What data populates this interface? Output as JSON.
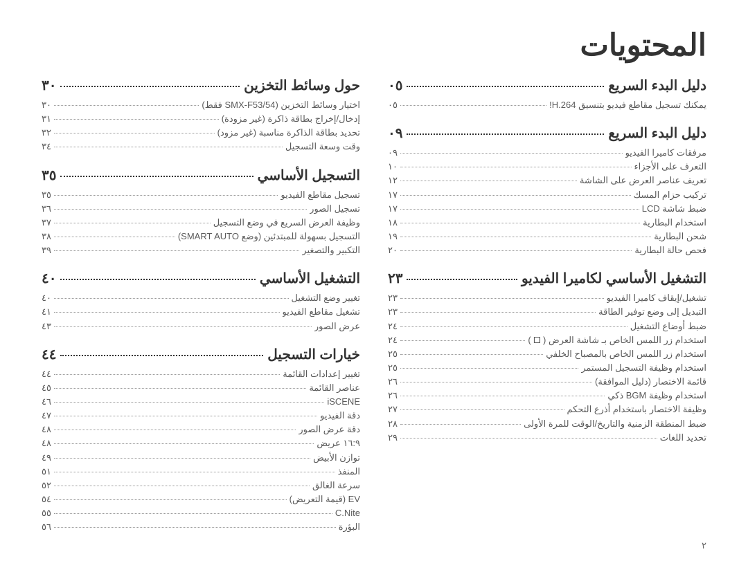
{
  "page_title": "المحتويات",
  "footer_page": "٢",
  "right_column": [
    {
      "heading": "دليل البدء السريع",
      "page": "٠٥",
      "entries": [
        {
          "text": "يمكنك تسجيل مقاطع فيديو بتنسيق H.264!",
          "page": "٠٥"
        }
      ]
    },
    {
      "heading": "دليل البدء السريع",
      "page": "٠٩",
      "entries": [
        {
          "text": "مرفقات كاميرا الفيديو",
          "page": "٠٩"
        },
        {
          "text": "التعرف على الأجزاء",
          "page": "١٠"
        },
        {
          "text": "تعريف عناصر العرض على الشاشة",
          "page": "١٢"
        },
        {
          "text": "تركيب حزام المسك",
          "page": "١٧"
        },
        {
          "text": "ضبط شاشة LCD",
          "page": "١٧"
        },
        {
          "text": "استخدام البطارية",
          "page": "١٨"
        },
        {
          "text": "شحن البطارية",
          "page": "١٩"
        },
        {
          "text": "فحص حالة البطارية",
          "page": "٢٠"
        }
      ]
    },
    {
      "heading": "التشغيل الأساسي لكاميرا الفيديو",
      "page": "٢٣",
      "entries": [
        {
          "text": "تشغيل/إيقاف كاميرا الفيديو",
          "page": "٢٣"
        },
        {
          "text": "التبديل إلى وضع توفير الطاقة",
          "page": "٢٣"
        },
        {
          "text": "ضبط أوضاع التشغيل",
          "page": "٢٤"
        },
        {
          "text": "استخدام زر اللمس الخاص بـ شاشة العرض ( 🞐 )",
          "page": "٢٤"
        },
        {
          "text": "استخدام زر اللمس الخاص بالمصباح الخلفي",
          "page": "٢٥"
        },
        {
          "text": "استخدام وظيفة التسجيل المستمر",
          "page": "٢٥"
        },
        {
          "text": "قائمة الاختصار (دليل الموافقة)",
          "page": "٢٦"
        },
        {
          "text": "استخدام وظيفة BGM ذكي",
          "page": "٢٦"
        },
        {
          "text": "وظيفة الاختصار باستخدام أذرع التحكم",
          "page": "٢٧"
        },
        {
          "text": "ضبط المنطقة الزمنية والتاريخ/الوقت للمرة الأولى",
          "page": "٢٨"
        },
        {
          "text": "تحديد اللغات",
          "page": "٢٩"
        }
      ]
    }
  ],
  "left_column": [
    {
      "heading": "حول وسائط التخزين",
      "page": "٣٠",
      "entries": [
        {
          "text": "اختيار وسائط التخزين (SMX-F53/54 فقط)",
          "page": "٣٠"
        },
        {
          "text": "إدخال/إخراج بطاقة ذاكرة (غير مزودة)",
          "page": "٣١"
        },
        {
          "text": "تحديد بطاقة الذاكرة مناسبة (غير مزود)",
          "page": "٣٢"
        },
        {
          "text": "وقت وسعة التسجيل",
          "page": "٣٤"
        }
      ]
    },
    {
      "heading": "التسجيل الأساسي",
      "page": "٣٥",
      "entries": [
        {
          "text": "تسجيل مقاطع الفيديو",
          "page": "٣٥"
        },
        {
          "text": "تسجيل الصور",
          "page": "٣٦"
        },
        {
          "text": "وظيفة العرض السريع في وضع التسجيل",
          "page": "٣٧"
        },
        {
          "text": "التسجيل بسهولة للمبتدئين (وضع SMART AUTO)",
          "page": "٣٨"
        },
        {
          "text": "التكبير والتصغير",
          "page": "٣٩"
        }
      ]
    },
    {
      "heading": "التشغيل الأساسي",
      "page": "٤٠",
      "entries": [
        {
          "text": "تغيير وضع التشغيل",
          "page": "٤٠"
        },
        {
          "text": "تشغيل مقاطع الفيديو",
          "page": "٤١"
        },
        {
          "text": "عرض الصور",
          "page": "٤٣"
        }
      ]
    },
    {
      "heading": "خيارات التسجيل",
      "page": "٤٤",
      "entries": [
        {
          "text": "تغيير إعدادات القائمة",
          "page": "٤٤"
        },
        {
          "text": "عناصر القائمة",
          "page": "٤٥"
        },
        {
          "text": "iSCENE",
          "page": "٤٦"
        },
        {
          "text": "دقة الفيديو",
          "page": "٤٧"
        },
        {
          "text": "دقة عرض الصور",
          "page": "٤٨"
        },
        {
          "text": "١٦:٩ عريض",
          "page": "٤٨"
        },
        {
          "text": "توازن الأبيض",
          "page": "٤٩"
        },
        {
          "text": "المنفذ",
          "page": "٥١"
        },
        {
          "text": "سرعة الغالق",
          "page": "٥٢"
        },
        {
          "text": "EV (قيمة التعريض)",
          "page": "٥٤"
        },
        {
          "text": "C.Nite",
          "page": "٥٥"
        },
        {
          "text": "البؤرة",
          "page": "٥٦"
        }
      ]
    }
  ]
}
